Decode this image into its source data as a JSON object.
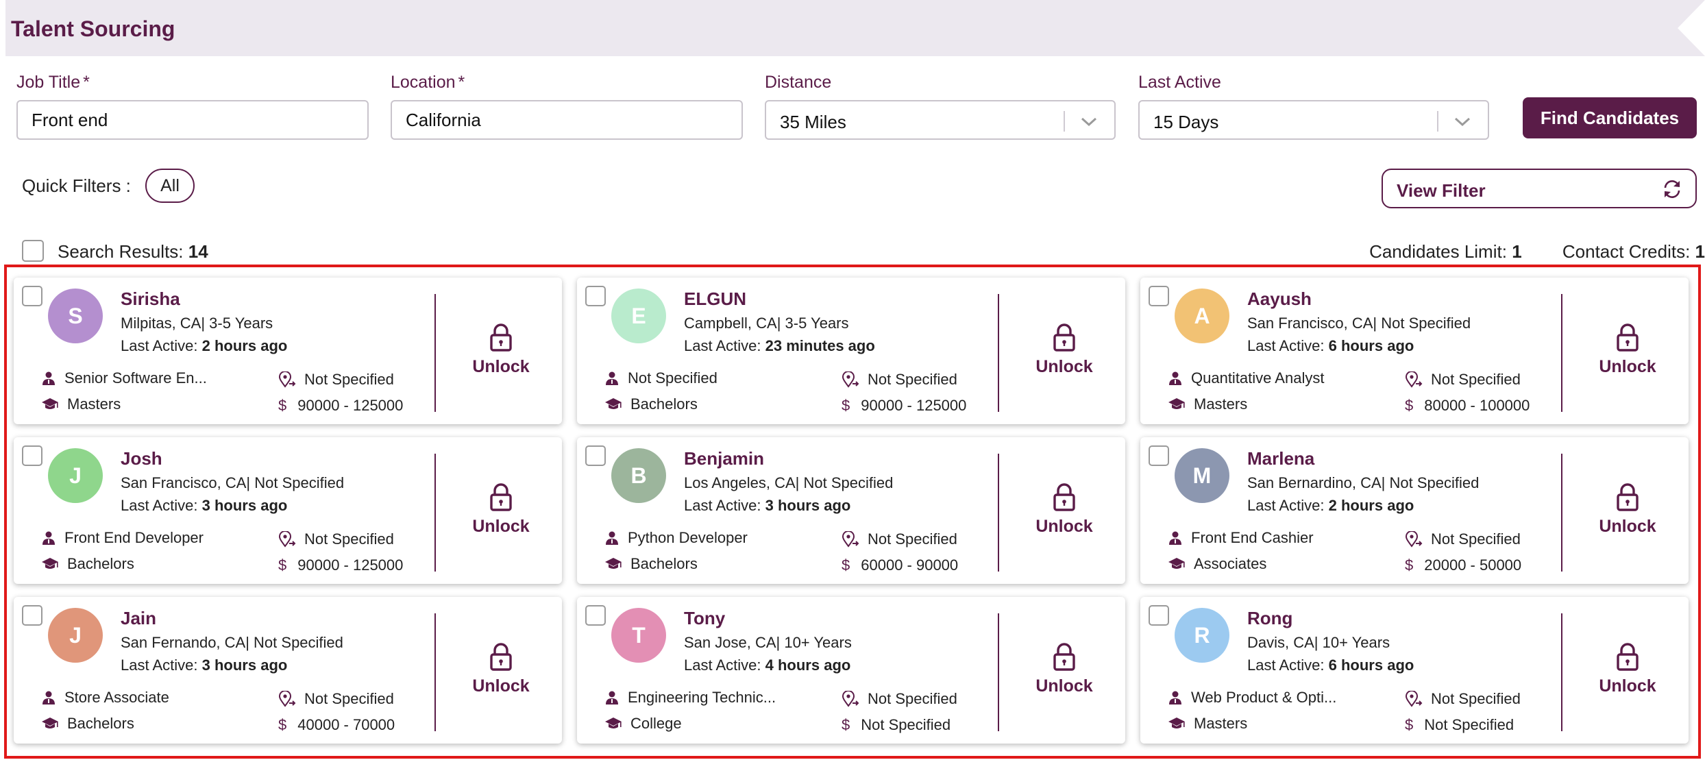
{
  "header": {
    "title": "Talent Sourcing"
  },
  "search": {
    "job_title": {
      "label": "Job Title",
      "required_mark": "*",
      "value": "Front end"
    },
    "location": {
      "label": "Location",
      "required_mark": "*",
      "value": "California"
    },
    "distance": {
      "label": "Distance",
      "value": "35 Miles"
    },
    "last_active": {
      "label": "Last Active",
      "value": "15 Days"
    },
    "find_button": "Find Candidates"
  },
  "quick_filters": {
    "label": "Quick Filters :",
    "chips": [
      "All"
    ]
  },
  "view_filter": {
    "label": "View Filter"
  },
  "results": {
    "label": "Search Results:",
    "count": "14",
    "candidates_limit_label": "Candidates Limit:",
    "candidates_limit_value": "1",
    "contact_credits_label": "Contact Credits:",
    "contact_credits_value": "1"
  },
  "labels": {
    "last_active_prefix": "Last Active:",
    "unlock": "Unlock"
  },
  "colors": {
    "brand": "#5a1c48",
    "frame": "#e01919"
  },
  "candidates": [
    {
      "initial": "S",
      "name": "Sirisha",
      "location": "Milpitas, CA| 3-5 Years",
      "last_active": "2 hours ago",
      "role": "Senior Software En...",
      "distance": "Not Specified",
      "education": "Masters",
      "salary": "90000 - 125000",
      "avatar_color": "#b48fcf"
    },
    {
      "initial": "E",
      "name": "ELGUN",
      "location": "Campbell, CA| 3-5 Years",
      "last_active": "23 minutes ago",
      "role": "Not Specified",
      "distance": "Not Specified",
      "education": "Bachelors",
      "salary": "90000 - 125000",
      "avatar_color": "#b9ebcd"
    },
    {
      "initial": "A",
      "name": "Aayush",
      "location": "San Francisco, CA| Not Specified",
      "last_active": "6 hours ago",
      "role": "Quantitative Analyst",
      "distance": "Not Specified",
      "education": "Masters",
      "salary": "80000 - 100000",
      "avatar_color": "#f2c274"
    },
    {
      "initial": "J",
      "name": "Josh",
      "location": "San Francisco, CA| Not Specified",
      "last_active": "3 hours ago",
      "role": "Front End Developer",
      "distance": "Not Specified",
      "education": "Bachelors",
      "salary": "90000 - 125000",
      "avatar_color": "#8fd68c"
    },
    {
      "initial": "B",
      "name": "Benjamin",
      "location": "Los Angeles, CA| Not Specified",
      "last_active": "3 hours ago",
      "role": "Python Developer",
      "distance": "Not Specified",
      "education": "Bachelors",
      "salary": "60000 - 90000",
      "avatar_color": "#9cb59c"
    },
    {
      "initial": "M",
      "name": "Marlena",
      "location": "San Bernardino, CA| Not Specified",
      "last_active": "2 hours ago",
      "role": "Front End Cashier",
      "distance": "Not Specified",
      "education": "Associates",
      "salary": "20000 - 50000",
      "avatar_color": "#8c97b0"
    },
    {
      "initial": "J",
      "name": "Jain",
      "location": "San Fernando, CA| Not Specified",
      "last_active": "3 hours ago",
      "role": "Store Associate",
      "distance": "Not Specified",
      "education": "Bachelors",
      "salary": "40000 - 70000",
      "avatar_color": "#e0967a"
    },
    {
      "initial": "T",
      "name": "Tony",
      "location": "San Jose, CA| 10+ Years",
      "last_active": "4 hours ago",
      "role": "Engineering Technic...",
      "distance": "Not Specified",
      "education": "College",
      "salary": "Not Specified",
      "avatar_color": "#e38fb4"
    },
    {
      "initial": "R",
      "name": "Rong",
      "location": "Davis, CA| 10+ Years",
      "last_active": "6 hours ago",
      "role": "Web Product & Opti...",
      "distance": "Not Specified",
      "education": "Masters",
      "salary": "Not Specified",
      "avatar_color": "#9ccaf0"
    }
  ]
}
